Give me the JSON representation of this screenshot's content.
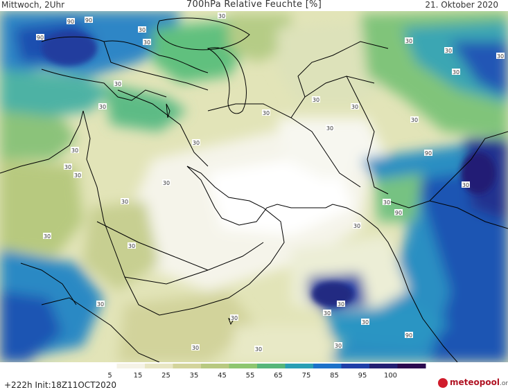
{
  "header": {
    "day": "Mittwoch, 2Uhr",
    "title": "700hPa Relative Feuchte [%]",
    "date": "21. Oktober 2020"
  },
  "footer": {
    "init": "+222h Init:18Z11OCT2020",
    "logo": "meteopool",
    "logo_suffix": ".org"
  },
  "colorbar": {
    "ticks": [
      "5",
      "15",
      "25",
      "35",
      "45",
      "55",
      "65",
      "75",
      "85",
      "95",
      "100"
    ],
    "colors": [
      "#ffffff",
      "#f5f3e6",
      "#e8e6c4",
      "#d3d49c",
      "#b8c980",
      "#8ec66f",
      "#57b67a",
      "#2a9fb4",
      "#1c72c9",
      "#1f3fa8",
      "#232072",
      "#2b0a4f"
    ]
  },
  "contour_labels": [
    "90",
    "90",
    "90",
    "30",
    "30",
    "30",
    "30",
    "30",
    "30",
    "30",
    "30",
    "30",
    "30",
    "30",
    "30",
    "30",
    "30",
    "30",
    "30",
    "30",
    "30",
    "30",
    "30",
    "30",
    "30",
    "30",
    "90",
    "30",
    "30",
    "90",
    "30",
    "30",
    "30",
    "30",
    "30",
    "30",
    "30",
    "30",
    "90"
  ]
}
